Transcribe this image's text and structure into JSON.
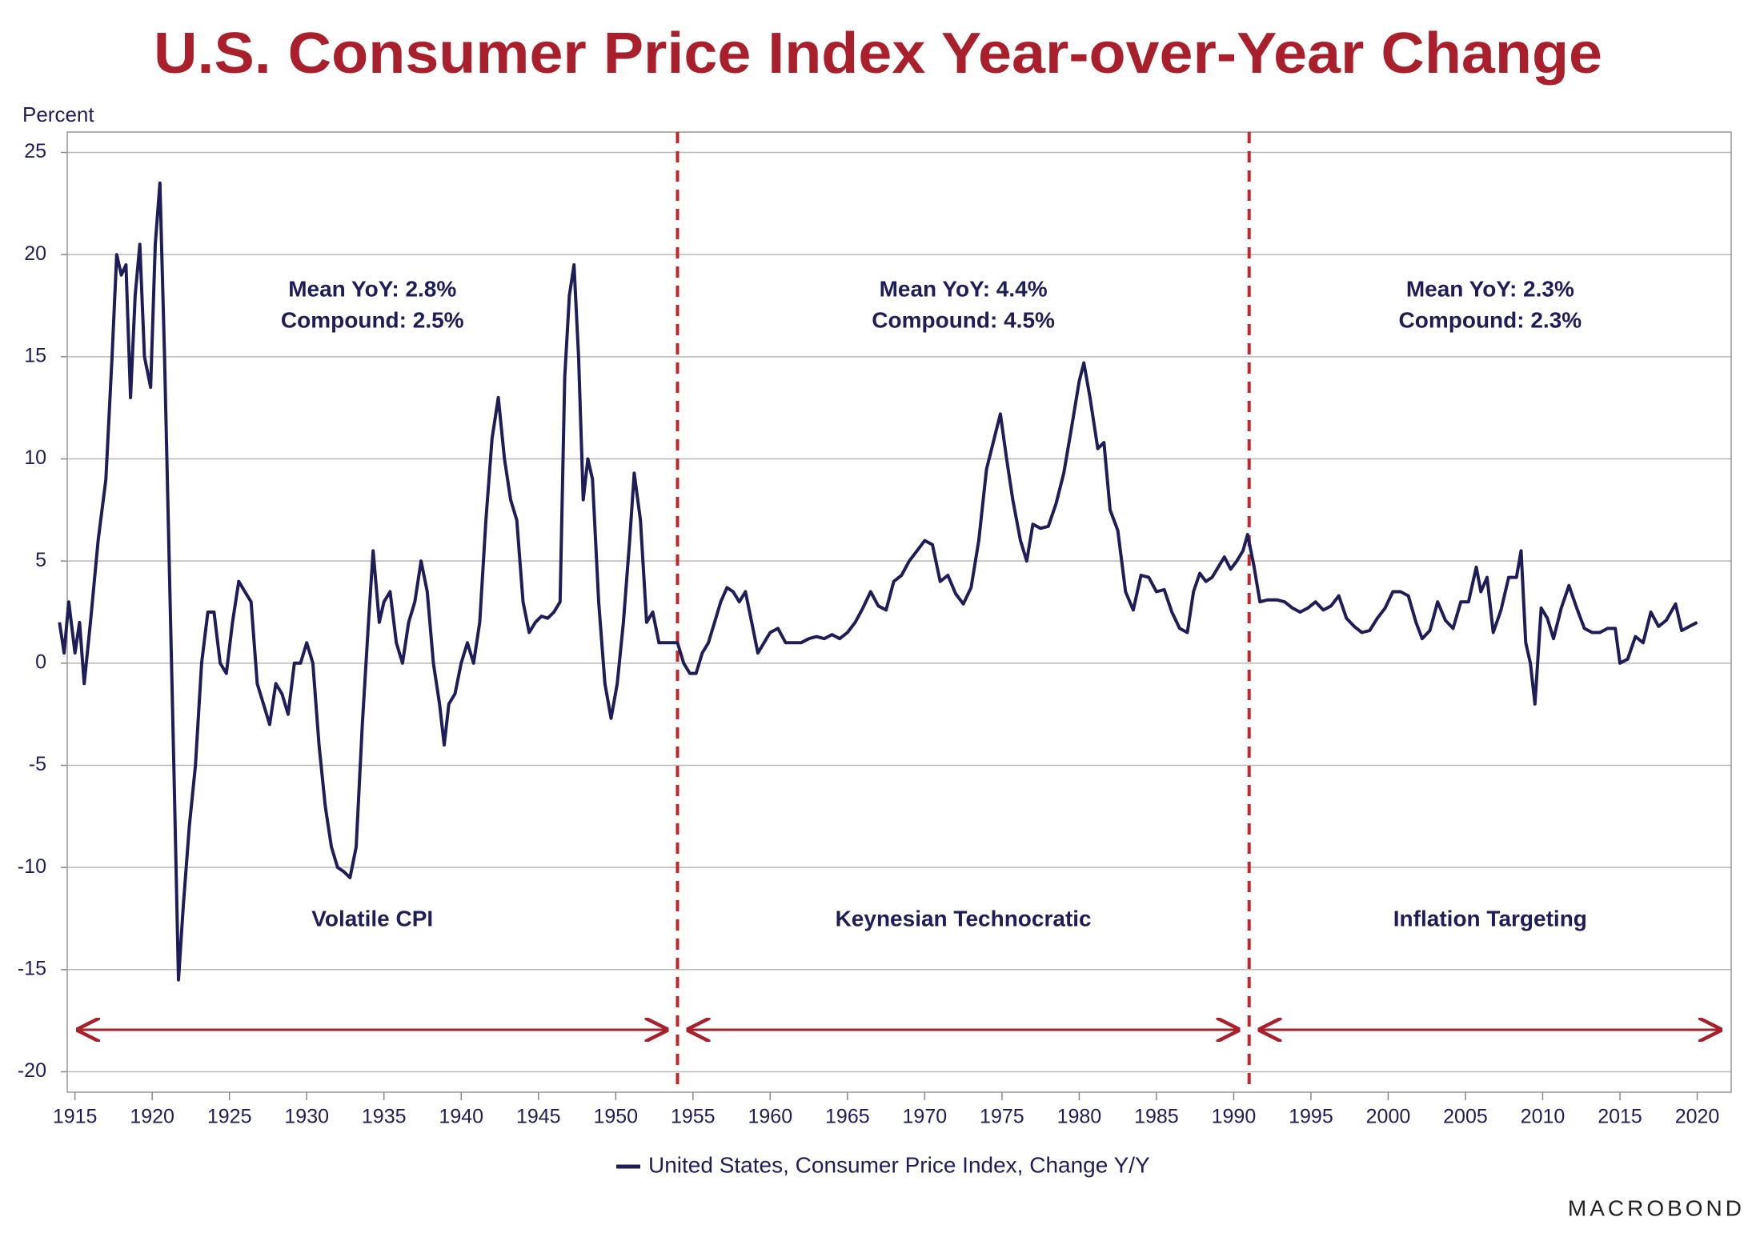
{
  "chart_data": {
    "type": "line",
    "title": "U.S. Consumer Price Index Year-over-Year Change",
    "y_label": "Percent",
    "source": "MACROBOND",
    "xlim": [
      1914.5,
      2022.2
    ],
    "ylim": [
      -21,
      26
    ],
    "xticks": [
      1915,
      1920,
      1925,
      1930,
      1935,
      1940,
      1945,
      1950,
      1955,
      1960,
      1965,
      1970,
      1975,
      1980,
      1985,
      1990,
      1995,
      2000,
      2005,
      2010,
      2015,
      2020
    ],
    "yticks": [
      -20,
      -15,
      -10,
      -5,
      0,
      5,
      10,
      15,
      20,
      25
    ],
    "grid": true,
    "dividers": [
      1954,
      1991
    ],
    "regions": [
      {
        "label": "Volatile CPI",
        "mean": "Mean YoY: 2.8%",
        "compound": "Compound: 2.5%"
      },
      {
        "label": "Keynesian Technocratic",
        "mean": "Mean YoY: 4.4%",
        "compound": "Compound: 4.5%"
      },
      {
        "label": "Inflation Targeting",
        "mean": "Mean YoY: 2.3%",
        "compound": "Compound: 2.3%"
      }
    ],
    "x": [
      1914.0,
      1914.3,
      1914.6,
      1915.0,
      1915.3,
      1915.6,
      1916.0,
      1916.5,
      1917.0,
      1917.4,
      1917.7,
      1918.0,
      1918.3,
      1918.6,
      1918.9,
      1919.2,
      1919.5,
      1919.9,
      1920.2,
      1920.5,
      1920.8,
      1921.1,
      1921.4,
      1921.7,
      1922.0,
      1922.4,
      1922.8,
      1923.2,
      1923.6,
      1924.0,
      1924.4,
      1924.8,
      1925.2,
      1925.6,
      1926.0,
      1926.4,
      1926.8,
      1927.2,
      1927.6,
      1928.0,
      1928.4,
      1928.8,
      1929.2,
      1929.6,
      1930.0,
      1930.4,
      1930.8,
      1931.2,
      1931.6,
      1932.0,
      1932.4,
      1932.8,
      1933.2,
      1933.6,
      1934.0,
      1934.3,
      1934.7,
      1935.0,
      1935.4,
      1935.8,
      1936.2,
      1936.6,
      1937.0,
      1937.4,
      1937.8,
      1938.2,
      1938.6,
      1938.9,
      1939.2,
      1939.6,
      1940.0,
      1940.4,
      1940.8,
      1941.2,
      1941.6,
      1942.0,
      1942.4,
      1942.8,
      1943.2,
      1943.6,
      1944.0,
      1944.4,
      1944.8,
      1945.2,
      1945.6,
      1946.0,
      1946.4,
      1946.7,
      1947.0,
      1947.3,
      1947.6,
      1947.9,
      1948.2,
      1948.5,
      1948.9,
      1949.3,
      1949.7,
      1950.1,
      1950.5,
      1950.9,
      1951.2,
      1951.6,
      1952.0,
      1952.4,
      1952.8,
      1953.2,
      1953.6,
      1954.0,
      1954.4,
      1954.8,
      1955.2,
      1955.6,
      1956.0,
      1956.4,
      1956.8,
      1957.2,
      1957.6,
      1958.0,
      1958.4,
      1958.8,
      1959.2,
      1959.6,
      1960.0,
      1960.5,
      1961.0,
      1961.5,
      1962.0,
      1962.5,
      1963.0,
      1963.5,
      1964.0,
      1964.5,
      1965.0,
      1965.5,
      1966.0,
      1966.5,
      1967.0,
      1967.5,
      1968.0,
      1968.5,
      1969.0,
      1969.5,
      1970.0,
      1970.5,
      1971.0,
      1971.5,
      1972.0,
      1972.5,
      1973.0,
      1973.5,
      1974.0,
      1974.5,
      1974.9,
      1975.3,
      1975.7,
      1976.2,
      1976.6,
      1977.0,
      1977.5,
      1978.0,
      1978.5,
      1979.0,
      1979.5,
      1980.0,
      1980.3,
      1980.7,
      1981.2,
      1981.6,
      1982.0,
      1982.5,
      1983.0,
      1983.5,
      1984.0,
      1984.5,
      1985.0,
      1985.5,
      1986.0,
      1986.5,
      1987.0,
      1987.4,
      1987.8,
      1988.2,
      1988.6,
      1989.0,
      1989.4,
      1989.8,
      1990.2,
      1990.6,
      1990.9,
      1991.3,
      1991.7,
      1992.2,
      1992.8,
      1993.3,
      1993.8,
      1994.3,
      1994.8,
      1995.3,
      1995.8,
      1996.3,
      1996.8,
      1997.3,
      1997.8,
      1998.3,
      1998.8,
      1999.3,
      1999.8,
      2000.3,
      2000.8,
      2001.3,
      2001.8,
      2002.2,
      2002.7,
      2003.2,
      2003.7,
      2004.2,
      2004.7,
      2005.2,
      2005.7,
      2006.0,
      2006.4,
      2006.8,
      2007.3,
      2007.8,
      2008.3,
      2008.6,
      2008.9,
      2009.2,
      2009.5,
      2009.9,
      2010.3,
      2010.7,
      2011.2,
      2011.7,
      2012.2,
      2012.7,
      2013.2,
      2013.7,
      2014.2,
      2014.7,
      2015.0,
      2015.5,
      2016.0,
      2016.5,
      2017.0,
      2017.5,
      2018.0,
      2018.6,
      2019.0,
      2019.5,
      2020.0
    ],
    "series": [
      {
        "name": "United States, Consumer Price Index, Change Y/Y",
        "color": "#1f1d57",
        "values": [
          2,
          0.5,
          3,
          0.5,
          2,
          -1,
          2,
          6,
          9,
          15,
          20,
          19,
          19.5,
          13,
          18,
          20.5,
          15,
          13.5,
          20.5,
          23.5,
          15,
          5,
          -5,
          -15.5,
          -12,
          -8,
          -5,
          0,
          2.5,
          2.5,
          0,
          -0.5,
          2,
          4,
          3.5,
          3,
          -1,
          -2,
          -3,
          -1,
          -1.5,
          -2.5,
          0,
          0,
          1,
          0,
          -4,
          -7,
          -9,
          -10,
          -10.2,
          -10.5,
          -9,
          -3,
          2,
          5.5,
          2,
          3,
          3.5,
          1,
          0,
          2,
          3,
          5,
          3.5,
          0,
          -2,
          -4,
          -2,
          -1.5,
          0,
          1,
          0,
          2,
          7,
          11,
          13,
          10,
          8,
          7,
          3,
          1.5,
          2,
          2.3,
          2.2,
          2.5,
          3,
          14,
          18,
          19.5,
          15,
          8,
          10,
          9,
          3,
          -1,
          -2.7,
          -1,
          2,
          6,
          9.3,
          7,
          2,
          2.5,
          1,
          1,
          1,
          1,
          0,
          -0.5,
          -0.5,
          0.5,
          1,
          2,
          3,
          3.7,
          3.5,
          3,
          3.5,
          2,
          0.5,
          1,
          1.5,
          1.7,
          1,
          1,
          1,
          1.2,
          1.3,
          1.2,
          1.4,
          1.2,
          1.5,
          2,
          2.7,
          3.5,
          2.8,
          2.6,
          4,
          4.3,
          5,
          5.5,
          6,
          5.8,
          4,
          4.3,
          3.4,
          2.9,
          3.7,
          6,
          9.5,
          11,
          12.2,
          10,
          8,
          6,
          5,
          6.8,
          6.6,
          6.7,
          7.8,
          9.3,
          11.5,
          13.8,
          14.7,
          13,
          10.5,
          10.8,
          7.5,
          6.5,
          3.5,
          2.6,
          4.3,
          4.2,
          3.5,
          3.6,
          2.5,
          1.7,
          1.5,
          3.5,
          4.4,
          4,
          4.2,
          4.7,
          5.2,
          4.6,
          5,
          5.5,
          6.3,
          4.8,
          3,
          3.1,
          3.1,
          3,
          2.7,
          2.5,
          2.7,
          3,
          2.6,
          2.8,
          3.3,
          2.2,
          1.8,
          1.5,
          1.6,
          2.2,
          2.7,
          3.5,
          3.5,
          3.3,
          2,
          1.2,
          1.6,
          3,
          2.1,
          1.7,
          3,
          3,
          4.7,
          3.5,
          4.2,
          1.5,
          2.6,
          4.2,
          4.2,
          5.5,
          1,
          0,
          -2,
          2.7,
          2.2,
          1.2,
          2.7,
          3.8,
          2.7,
          1.7,
          1.5,
          1.5,
          1.7,
          1.7,
          0,
          0.2,
          1.3,
          1,
          2.5,
          1.8,
          2.1,
          2.9,
          1.6,
          1.8,
          2
        ]
      }
    ]
  }
}
